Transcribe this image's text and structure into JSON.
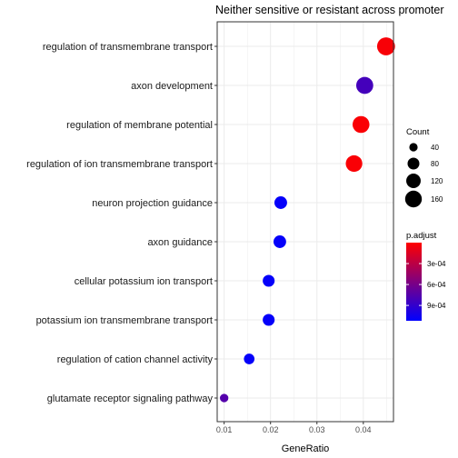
{
  "chart_data": {
    "type": "scatter",
    "title": "Neither sensitive or resistant across promoter",
    "xlabel": "GeneRatio",
    "ylabel": "",
    "xlim": [
      0.0085,
      0.0465
    ],
    "xticks": [
      0.01,
      0.02,
      0.03,
      0.04
    ],
    "xtick_labels": [
      "0.01",
      "0.02",
      "0.03",
      "0.04"
    ],
    "grid": true,
    "categories": [
      "regulation of transmembrane transport",
      "axon development",
      "regulation of membrane potential",
      "regulation of ion transmembrane transport",
      "neuron projection guidance",
      "axon guidance",
      "cellular potassium ion transport",
      "potassium ion transmembrane transport",
      "regulation of cation channel activity",
      "glutamate receptor signaling pathway"
    ],
    "points": [
      {
        "category": "regulation of transmembrane transport",
        "gene_ratio": 0.0449,
        "count": 185,
        "p_adjust": 3e-05
      },
      {
        "category": "axon development",
        "gene_ratio": 0.0403,
        "count": 166,
        "p_adjust": 0.00082
      },
      {
        "category": "regulation of membrane potential",
        "gene_ratio": 0.0395,
        "count": 163,
        "p_adjust": 2e-05
      },
      {
        "category": "regulation of ion transmembrane transport",
        "gene_ratio": 0.038,
        "count": 157,
        "p_adjust": 2e-05
      },
      {
        "category": "neuron projection guidance",
        "gene_ratio": 0.0222,
        "count": 92,
        "p_adjust": 0.0011
      },
      {
        "category": "axon guidance",
        "gene_ratio": 0.022,
        "count": 91,
        "p_adjust": 0.0011
      },
      {
        "category": "cellular potassium ion transport",
        "gene_ratio": 0.0196,
        "count": 81,
        "p_adjust": 0.0011
      },
      {
        "category": "potassium ion transmembrane transport",
        "gene_ratio": 0.0196,
        "count": 81,
        "p_adjust": 0.0011
      },
      {
        "category": "regulation of cation channel activity",
        "gene_ratio": 0.0154,
        "count": 64,
        "p_adjust": 0.0011
      },
      {
        "category": "glutamate receptor signaling pathway",
        "gene_ratio": 0.01,
        "count": 41,
        "p_adjust": 0.00075
      }
    ],
    "size_legend": {
      "title": "Count",
      "values": [
        40,
        80,
        120,
        160
      ],
      "labels": [
        "40",
        "80",
        "120",
        "160"
      ],
      "placement": "right"
    },
    "color_legend": {
      "title": "p.adjust",
      "range": [
        0.0,
        0.00112
      ],
      "ticks": [
        0.0003,
        0.0006,
        0.0009
      ],
      "tick_labels": [
        "3e-04",
        "6e-04",
        "9e-04"
      ],
      "low_color": "#ff0000",
      "high_color": "#0000ff",
      "placement": "right"
    }
  }
}
